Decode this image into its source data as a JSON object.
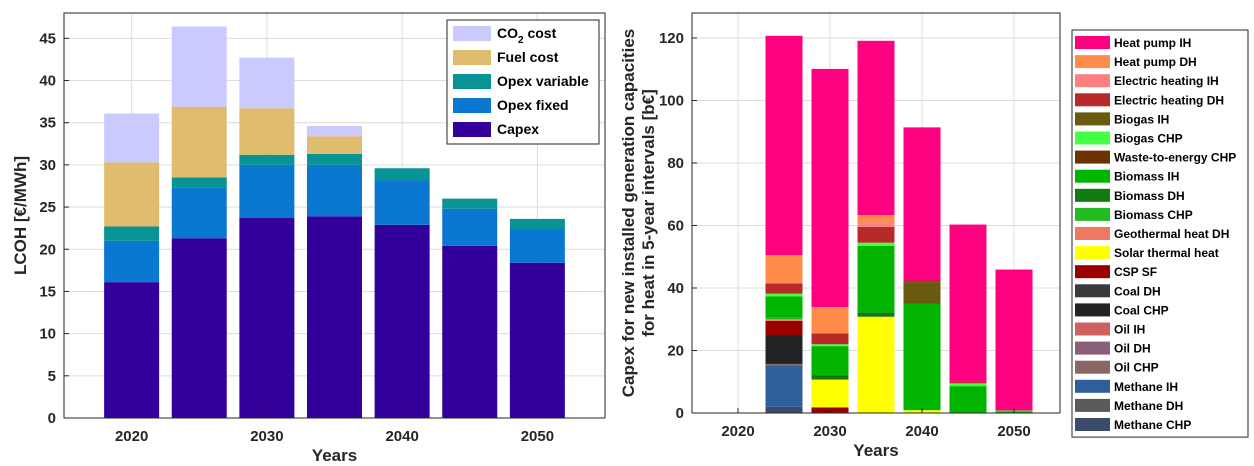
{
  "chart_data": [
    {
      "type": "bar",
      "stacked": true,
      "xlabel": "Years",
      "ylabel": "LCOH [€/MWh]",
      "x": [
        2020,
        2025,
        2030,
        2035,
        2040,
        2045,
        2050
      ],
      "xticks": [
        "2020",
        "2030",
        "2040",
        "2050"
      ],
      "ylim": [
        0,
        48
      ],
      "yticks": [
        0,
        5,
        10,
        15,
        20,
        25,
        30,
        35,
        40,
        45
      ],
      "grid": true,
      "legend_position": "top-right",
      "series": [
        {
          "name": "Capex",
          "color": "#33009c",
          "values": [
            16.1,
            21.3,
            23.7,
            23.9,
            22.9,
            20.4,
            18.4
          ]
        },
        {
          "name": "Opex fixed",
          "color": "#0a77d0",
          "values": [
            4.9,
            6.0,
            6.3,
            6.1,
            5.3,
            4.4,
            4.0
          ]
        },
        {
          "name": "Opex variable",
          "color": "#089494",
          "values": [
            1.7,
            1.2,
            1.2,
            1.3,
            1.4,
            1.2,
            1.2
          ]
        },
        {
          "name": "Fuel cost",
          "color": "#e0bd6e",
          "values": [
            7.6,
            8.4,
            5.5,
            2.1,
            0,
            0,
            0
          ]
        },
        {
          "name": "CO2 cost",
          "color": "#cbcaff",
          "values": [
            5.8,
            9.5,
            6.0,
            1.2,
            0,
            0,
            0
          ]
        }
      ],
      "legend": [
        {
          "label_main": "CO",
          "label_sub": "2",
          "label_rest": " cost",
          "color": "#cbcaff"
        },
        {
          "label_main": "Fuel cost",
          "label_sub": "",
          "label_rest": "",
          "color": "#e0bd6e"
        },
        {
          "label_main": "Opex variable",
          "label_sub": "",
          "label_rest": "",
          "color": "#089494"
        },
        {
          "label_main": "Opex fixed",
          "label_sub": "",
          "label_rest": "",
          "color": "#0a77d0"
        },
        {
          "label_main": "Capex",
          "label_sub": "",
          "label_rest": "",
          "color": "#33009c"
        }
      ]
    },
    {
      "type": "bar",
      "stacked": true,
      "xlabel": "Years",
      "ylabel": [
        "Capex for new installed generation capacities",
        "for heat in 5-year intervals [b€]"
      ],
      "x": [
        2020,
        2025,
        2030,
        2035,
        2040,
        2045,
        2050
      ],
      "xticks": [
        "2020",
        "2030",
        "2040",
        "2050"
      ],
      "ylim": [
        0,
        128
      ],
      "yticks": [
        0,
        20,
        40,
        60,
        80,
        100,
        120
      ],
      "grid": true,
      "legend_position": "outside-right",
      "series": [
        {
          "name": "Methane CHP",
          "color": "#3a4a6a",
          "values": [
            0,
            2.0,
            0,
            0,
            0,
            0,
            0
          ]
        },
        {
          "name": "Methane DH",
          "color": "#5a5a5a",
          "values": [
            0,
            0,
            0,
            0,
            0,
            0,
            0
          ]
        },
        {
          "name": "Methane IH",
          "color": "#2f5f9a",
          "values": [
            0,
            13.3,
            0,
            0,
            0,
            0,
            0
          ]
        },
        {
          "name": "Oil CHP",
          "color": "#8a6666",
          "values": [
            0,
            0.4,
            0,
            0,
            0,
            0,
            0
          ]
        },
        {
          "name": "Oil DH",
          "color": "#8a5f7a",
          "values": [
            0,
            0,
            0,
            0,
            0,
            0,
            0
          ]
        },
        {
          "name": "Oil IH",
          "color": "#d06060",
          "values": [
            0,
            0,
            0,
            0,
            0,
            0,
            0
          ]
        },
        {
          "name": "Coal CHP",
          "color": "#222222",
          "values": [
            0,
            9.1,
            0,
            0,
            0,
            0,
            0
          ]
        },
        {
          "name": "Coal DH",
          "color": "#3a3a3a",
          "values": [
            0,
            0,
            0,
            0,
            0,
            0,
            0
          ]
        },
        {
          "name": "CSP SF",
          "color": "#9b0000",
          "values": [
            0,
            4.7,
            1.8,
            0,
            0,
            0,
            0
          ]
        },
        {
          "name": "Solar thermal heat",
          "color": "#ffff00",
          "values": [
            0,
            0,
            8.9,
            30.8,
            0.9,
            0,
            0
          ]
        },
        {
          "name": "Geothermal heat DH",
          "color": "#f07860",
          "values": [
            0,
            0.5,
            0,
            0,
            0,
            0,
            0
          ]
        },
        {
          "name": "Biomass CHP",
          "color": "#22bb22",
          "values": [
            0,
            0.5,
            0,
            0,
            0,
            0,
            0
          ]
        },
        {
          "name": "Biomass DH",
          "color": "#117a11",
          "values": [
            0,
            0,
            1.3,
            1.4,
            0,
            0,
            0
          ]
        },
        {
          "name": "Biomass IH",
          "color": "#00b400",
          "values": [
            0,
            6.8,
            9.4,
            21.3,
            34.0,
            8.6,
            0.5
          ]
        },
        {
          "name": "Waste-to-energy CHP",
          "color": "#6a3300",
          "values": [
            0,
            0,
            0,
            0,
            0,
            0,
            0
          ]
        },
        {
          "name": "Biogas CHP",
          "color": "#44ff44",
          "values": [
            0,
            0.9,
            0.6,
            1.0,
            0,
            0.9,
            0.3
          ]
        },
        {
          "name": "Biogas IH",
          "color": "#6a5a10",
          "values": [
            0,
            0,
            0,
            0,
            7.0,
            0,
            0
          ]
        },
        {
          "name": "Electric heating DH",
          "color": "#b82a2a",
          "values": [
            0,
            3.3,
            3.5,
            5.1,
            0.5,
            0.7,
            0
          ]
        },
        {
          "name": "Electric heating IH",
          "color": "#ff8080",
          "values": [
            0,
            0,
            0,
            1.4,
            0,
            0,
            0
          ]
        },
        {
          "name": "Heat pump DH",
          "color": "#ff8c4a",
          "values": [
            0,
            9.0,
            8.4,
            2.3,
            0,
            0,
            0
          ]
        },
        {
          "name": "Heat pump IH",
          "color": "#ff0080",
          "values": [
            0,
            70.2,
            76.2,
            55.8,
            49.0,
            50.1,
            45.1
          ]
        }
      ],
      "legend": [
        {
          "label": "Heat pump IH",
          "color": "#ff0080"
        },
        {
          "label": "Heat pump DH",
          "color": "#ff8c4a"
        },
        {
          "label": "Electric heating IH",
          "color": "#ff8080"
        },
        {
          "label": "Electric heating DH",
          "color": "#b82a2a"
        },
        {
          "label": "Biogas IH",
          "color": "#6a5a10"
        },
        {
          "label": "Biogas CHP",
          "color": "#44ff44"
        },
        {
          "label": "Waste-to-energy CHP",
          "color": "#6a3300"
        },
        {
          "label": "Biomass IH",
          "color": "#00b400"
        },
        {
          "label": "Biomass DH",
          "color": "#117a11"
        },
        {
          "label": "Biomass CHP",
          "color": "#22bb22"
        },
        {
          "label": "Geothermal heat DH",
          "color": "#f07860"
        },
        {
          "label": "Solar thermal heat",
          "color": "#ffff00"
        },
        {
          "label": "CSP SF",
          "color": "#9b0000"
        },
        {
          "label": "Coal DH",
          "color": "#3a3a3a"
        },
        {
          "label": "Coal CHP",
          "color": "#222222"
        },
        {
          "label": "Oil IH",
          "color": "#d06060"
        },
        {
          "label": "Oil DH",
          "color": "#8a5f7a"
        },
        {
          "label": "Oil CHP",
          "color": "#8a6666"
        },
        {
          "label": "Methane IH",
          "color": "#2f5f9a"
        },
        {
          "label": "Methane DH",
          "color": "#5a5a5a"
        },
        {
          "label": "Methane CHP",
          "color": "#3a4a6a"
        }
      ]
    }
  ]
}
